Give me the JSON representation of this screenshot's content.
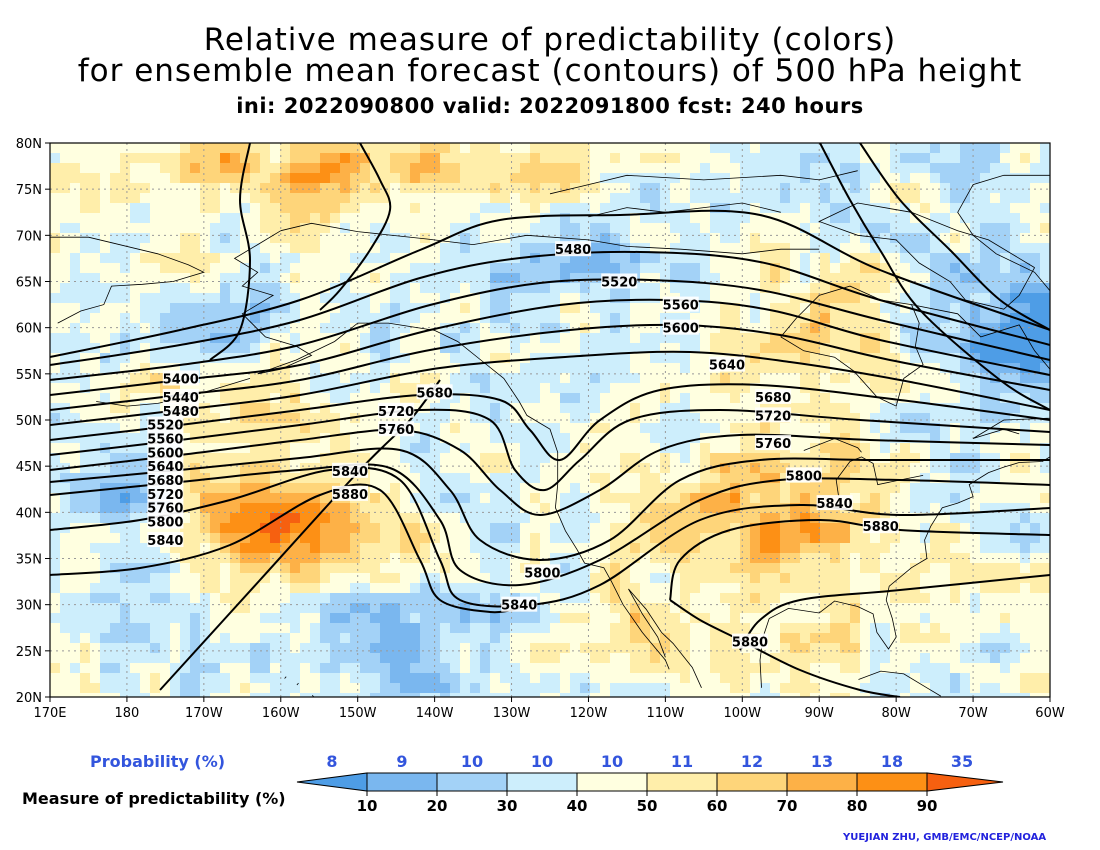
{
  "title": {
    "line1": "Relative measure of predictability (colors)",
    "line2": "for ensemble mean forecast (contours) of 500 hPa height",
    "line3": "ini: 2022090800 valid: 2022091800 fcst: 240 hours"
  },
  "map": {
    "projection": "lat-lon",
    "lat_range": [
      20,
      80
    ],
    "lon_range": [
      "170E",
      "60W"
    ],
    "lat_labels": [
      "80N",
      "75N",
      "70N",
      "65N",
      "60N",
      "55N",
      "50N",
      "45N",
      "40N",
      "35N",
      "30N",
      "25N",
      "20N"
    ],
    "lon_labels": [
      "170E",
      "180",
      "170W",
      "160W",
      "150W",
      "140W",
      "130W",
      "120W",
      "110W",
      "100W",
      "90W",
      "80W",
      "70W",
      "60W"
    ],
    "grid": true,
    "contour_units": "gpm",
    "contour_levels": [
      5400,
      5440,
      5480,
      5520,
      5560,
      5600,
      5640,
      5680,
      5720,
      5760,
      5800,
      5840,
      5880
    ],
    "contour_labels": [
      {
        "text": "5480",
        "lon": -122,
        "lat": 68.5
      },
      {
        "text": "5520",
        "lon": -116,
        "lat": 65
      },
      {
        "text": "5560",
        "lon": -108,
        "lat": 62.5
      },
      {
        "text": "5600",
        "lon": -108,
        "lat": 60
      },
      {
        "text": "5640",
        "lon": -102,
        "lat": 56
      },
      {
        "text": "5680",
        "lon": -140,
        "lat": 53
      },
      {
        "text": "5720",
        "lon": -145,
        "lat": 51
      },
      {
        "text": "5760",
        "lon": -145,
        "lat": 49
      },
      {
        "text": "5680",
        "lon": -96,
        "lat": 52.5
      },
      {
        "text": "5720",
        "lon": -96,
        "lat": 50.5
      },
      {
        "text": "5760",
        "lon": -96,
        "lat": 47.5
      },
      {
        "text": "5800",
        "lon": -92,
        "lat": 44
      },
      {
        "text": "5840",
        "lon": -88,
        "lat": 41
      },
      {
        "text": "5840",
        "lon": -151,
        "lat": 44.5
      },
      {
        "text": "5880",
        "lon": -151,
        "lat": 42
      },
      {
        "text": "5880",
        "lon": -82,
        "lat": 38.5
      },
      {
        "text": "5800",
        "lon": -126,
        "lat": 33.5
      },
      {
        "text": "5840",
        "lon": -129,
        "lat": 30
      },
      {
        "text": "5880",
        "lon": -99,
        "lat": 26
      },
      {
        "text": "5400",
        "lon": -173,
        "lat": 54.5
      },
      {
        "text": "5440",
        "lon": -173,
        "lat": 52.5
      },
      {
        "text": "5480",
        "lon": -173,
        "lat": 51
      },
      {
        "text": "5520",
        "lon": -175,
        "lat": 49.5
      },
      {
        "text": "5560",
        "lon": -175,
        "lat": 48
      },
      {
        "text": "5600",
        "lon": -175,
        "lat": 46.5
      },
      {
        "text": "5640",
        "lon": -175,
        "lat": 45
      },
      {
        "text": "5680",
        "lon": -175,
        "lat": 43.5
      },
      {
        "text": "5720",
        "lon": -175,
        "lat": 42
      },
      {
        "text": "5760",
        "lon": -175,
        "lat": 40.5
      },
      {
        "text": "5800",
        "lon": -175,
        "lat": 39
      },
      {
        "text": "5840",
        "lon": -175,
        "lat": 37
      }
    ]
  },
  "colorbar": {
    "probability_label": "Probability (%)",
    "measure_label": "Measure of predictability (%)",
    "probabilities": [
      "8",
      "9",
      "10",
      "10",
      "10",
      "11",
      "12",
      "13",
      "18",
      "35"
    ],
    "measure_ticks": [
      "10",
      "20",
      "30",
      "40",
      "50",
      "60",
      "70",
      "80",
      "90"
    ],
    "colors": [
      "#4e9de6",
      "#7ab7ef",
      "#a3d2f7",
      "#cdeefc",
      "#ffffe0",
      "#ffeeaa",
      "#fed57a",
      "#fdb147",
      "#fd9015",
      "#f66010"
    ]
  },
  "credit": "YUEJIAN ZHU, GMB/EMC/NCEP/NOAA"
}
